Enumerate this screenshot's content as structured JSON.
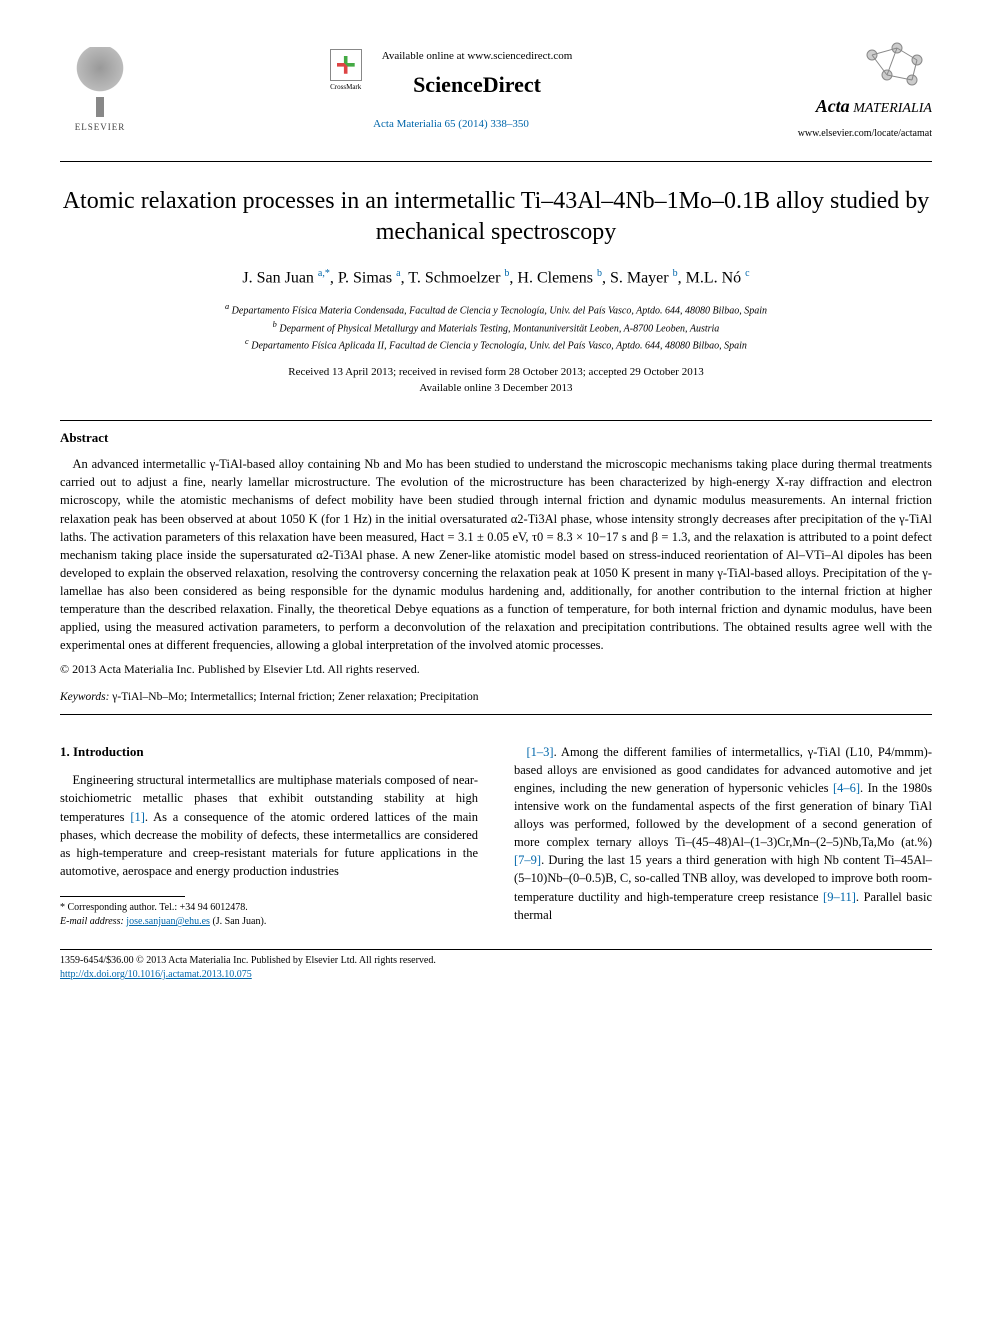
{
  "header": {
    "publisher": "ELSEVIER",
    "crossmark": "CrossMark",
    "available": "Available online at www.sciencedirect.com",
    "sciencedirect": "ScienceDirect",
    "journal_ref": "Acta Materialia 65 (2014) 338–350",
    "journal_name_prefix": "Acta",
    "journal_name_main": "MATERIALIA",
    "journal_url": "www.elsevier.com/locate/actamat"
  },
  "title": "Atomic relaxation processes in an intermetallic Ti–43Al–4Nb–1Mo–0.1B alloy studied by mechanical spectroscopy",
  "authors_html": "J. San Juan",
  "authors": [
    {
      "name": "J. San Juan",
      "aff": "a,",
      "corr": "*"
    },
    {
      "name": "P. Simas",
      "aff": "a"
    },
    {
      "name": "T. Schmoelzer",
      "aff": "b"
    },
    {
      "name": "H. Clemens",
      "aff": "b"
    },
    {
      "name": "S. Mayer",
      "aff": "b"
    },
    {
      "name": "M.L. Nó",
      "aff": "c"
    }
  ],
  "affiliations": [
    "a Departamento Física Materia Condensada, Facultad de Ciencia y Tecnología, Univ. del País Vasco, Aptdo. 644, 48080 Bilbao, Spain",
    "b Deparment of Physical Metallurgy and Materials Testing, Montanuniversität Leoben, A-8700 Leoben, Austria",
    "c Departamento Física Aplicada II, Facultad de Ciencia y Tecnología, Univ. del País Vasco, Aptdo. 644, 48080 Bilbao, Spain"
  ],
  "dates": {
    "line1": "Received 13 April 2013; received in revised form 28 October 2013; accepted 29 October 2013",
    "line2": "Available online 3 December 2013"
  },
  "abstract": {
    "heading": "Abstract",
    "text": "An advanced intermetallic γ-TiAl-based alloy containing Nb and Mo has been studied to understand the microscopic mechanisms taking place during thermal treatments carried out to adjust a fine, nearly lamellar microstructure. The evolution of the microstructure has been characterized by high-energy X-ray diffraction and electron microscopy, while the atomistic mechanisms of defect mobility have been studied through internal friction and dynamic modulus measurements. An internal friction relaxation peak has been observed at about 1050 K (for 1 Hz) in the initial oversaturated α2-Ti3Al phase, whose intensity strongly decreases after precipitation of the γ-TiAl laths. The activation parameters of this relaxation have been measured, Hact = 3.1 ± 0.05 eV, τ0 = 8.3 × 10−17 s and β = 1.3, and the relaxation is attributed to a point defect mechanism taking place inside the supersaturated α2-Ti3Al phase. A new Zener-like atomistic model based on stress-induced reorientation of Al–VTi–Al dipoles has been developed to explain the observed relaxation, resolving the controversy concerning the relaxation peak at 1050 K present in many γ-TiAl-based alloys. Precipitation of the γ-lamellae has also been considered as being responsible for the dynamic modulus hardening and, additionally, for another contribution to the internal friction at higher temperature than the described relaxation. Finally, the theoretical Debye equations as a function of temperature, for both internal friction and dynamic modulus, have been applied, using the measured activation parameters, to perform a deconvolution of the relaxation and precipitation contributions. The obtained results agree well with the experimental ones at different frequencies, allowing a global interpretation of the involved atomic processes.",
    "copyright": "© 2013 Acta Materialia Inc. Published by Elsevier Ltd. All rights reserved."
  },
  "keywords": {
    "label": "Keywords:",
    "text": "γ-TiAl–Nb–Mo; Intermetallics; Internal friction; Zener relaxation; Precipitation"
  },
  "intro": {
    "heading": "1. Introduction",
    "col1": "Engineering structural intermetallics are multiphase materials composed of near-stoichiometric metallic phases that exhibit outstanding stability at high temperatures [1]. As a consequence of the atomic ordered lattices of the main phases, which decrease the mobility of defects, these intermetallics are considered as high-temperature and creep-resistant materials for future applications in the automotive, aerospace and energy production industries",
    "col2": "[1–3]. Among the different families of intermetallics, γ-TiAl (L10, P4/mmm)-based alloys are envisioned as good candidates for advanced automotive and jet engines, including the new generation of hypersonic vehicles [4–6]. In the 1980s intensive work on the fundamental aspects of the first generation of binary TiAl alloys was performed, followed by the development of a second generation of more complex ternary alloys Ti–(45–48)Al–(1–3)Cr,Mn–(2–5)Nb,Ta,Mo (at.%) [7–9]. During the last 15 years a third generation with high Nb content Ti–45Al–(5–10)Nb–(0–0.5)B, C, so-called TNB alloy, was developed to improve both room-temperature ductility and high-temperature creep resistance [9–11]. Parallel basic thermal"
  },
  "footnote": {
    "corr": "* Corresponding author. Tel.: +34 94 6012478.",
    "email_label": "E-mail address:",
    "email": "jose.sanjuan@ehu.es",
    "email_name": "(J. San Juan)."
  },
  "footer": {
    "line1": "1359-6454/$36.00 © 2013 Acta Materialia Inc. Published by Elsevier Ltd. All rights reserved.",
    "doi": "http://dx.doi.org/10.1016/j.actamat.2013.10.075"
  },
  "colors": {
    "link": "#0066aa",
    "text": "#000000",
    "background": "#ffffff"
  },
  "typography": {
    "body_fontsize": 14,
    "title_fontsize": 24,
    "authors_fontsize": 16,
    "abstract_fontsize": 12.5,
    "footnote_fontsize": 10,
    "font_family": "Georgia, Times New Roman, serif"
  }
}
